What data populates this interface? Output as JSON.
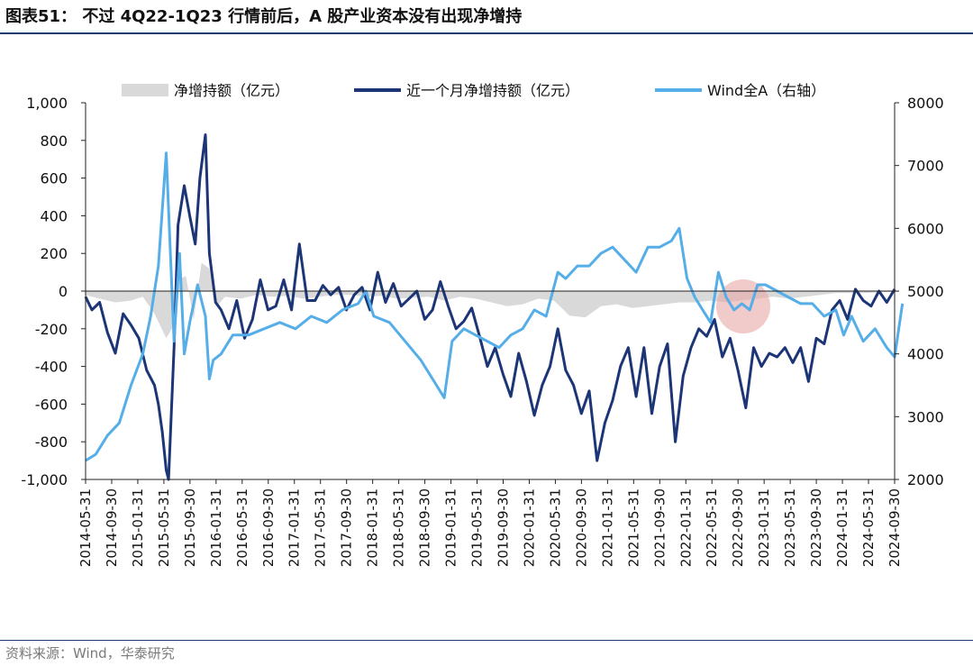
{
  "title": "图表51： 不过 4Q22-1Q23 行情前后，A 股产业资本没有出现净增持",
  "source": "资料来源：Wind，华泰研究",
  "chart_data": {
    "type": "line",
    "legend_position": "top",
    "grid": false,
    "x_ticks": [
      "2014-05-31",
      "2014-09-30",
      "2015-01-31",
      "2015-05-31",
      "2015-09-30",
      "2016-01-31",
      "2016-05-31",
      "2016-09-30",
      "2017-01-31",
      "2017-05-31",
      "2017-09-30",
      "2018-01-31",
      "2018-05-31",
      "2018-09-30",
      "2019-01-31",
      "2019-05-31",
      "2019-09-30",
      "2020-01-31",
      "2020-05-31",
      "2020-09-30",
      "2021-01-31",
      "2021-05-31",
      "2021-09-30",
      "2022-01-31",
      "2022-05-31",
      "2022-09-30",
      "2023-01-31",
      "2023-05-31",
      "2023-09-30",
      "2024-01-31",
      "2024-05-31",
      "2024-09-30"
    ],
    "left_axis": {
      "ylim": [
        -1000,
        1000
      ],
      "ticks": [
        "1,000",
        "800",
        "600",
        "400",
        "200",
        "0",
        "-200",
        "-400",
        "-600",
        "-800",
        "-1,000"
      ]
    },
    "right_axis": {
      "ylim": [
        2000,
        8000
      ],
      "ticks": [
        "8000",
        "7000",
        "6000",
        "5000",
        "4000",
        "3000",
        "2000"
      ]
    },
    "series": [
      {
        "name": "净增持额（亿元）",
        "kind": "area",
        "axis": "left",
        "color": "#d9d9d9",
        "x": [
          2014.42,
          2014.6,
          2014.8,
          2015.0,
          2015.15,
          2015.3,
          2015.45,
          2015.55,
          2015.6,
          2015.7,
          2015.8,
          2015.9,
          2016.0,
          2016.1,
          2016.2,
          2016.4,
          2016.6,
          2016.8,
          2017.0,
          2017.2,
          2017.4,
          2017.6,
          2017.8,
          2018.0,
          2018.2,
          2018.4,
          2018.6,
          2018.8,
          2019.0,
          2019.2,
          2019.4,
          2019.6,
          2019.8,
          2020.0,
          2020.2,
          2020.4,
          2020.6,
          2020.8,
          2021.0,
          2021.2,
          2021.4,
          2021.6,
          2021.8,
          2022.0,
          2022.2,
          2022.4,
          2022.6,
          2022.8,
          2023.0,
          2023.2,
          2023.4,
          2023.6,
          2023.8,
          2024.0,
          2024.2,
          2024.4,
          2024.6,
          2024.8
        ],
        "values": [
          -20,
          -40,
          -60,
          -50,
          -30,
          -120,
          -250,
          -180,
          60,
          80,
          -150,
          150,
          120,
          -80,
          -30,
          -40,
          -20,
          -30,
          -25,
          -40,
          -30,
          -20,
          -20,
          -30,
          -25,
          -40,
          -35,
          -30,
          -50,
          -30,
          -40,
          -60,
          -80,
          -70,
          -40,
          -50,
          -130,
          -140,
          -80,
          -70,
          -90,
          -80,
          -70,
          -60,
          -60,
          -50,
          -60,
          -50,
          -40,
          -30,
          -40,
          -30,
          -20,
          -10,
          -10,
          -10,
          -5,
          -5
        ]
      },
      {
        "name": "近一个月净增持额（亿元）",
        "kind": "line",
        "axis": "left",
        "color": "#1c3576",
        "x": [
          2014.42,
          2014.5,
          2014.6,
          2014.7,
          2014.8,
          2014.9,
          2015.0,
          2015.1,
          2015.2,
          2015.3,
          2015.35,
          2015.4,
          2015.45,
          2015.48,
          2015.55,
          2015.6,
          2015.68,
          2015.75,
          2015.82,
          2015.88,
          2015.95,
          2016.0,
          2016.08,
          2016.15,
          2016.25,
          2016.35,
          2016.45,
          2016.55,
          2016.65,
          2016.75,
          2016.85,
          2016.95,
          2017.05,
          2017.15,
          2017.25,
          2017.35,
          2017.45,
          2017.55,
          2017.65,
          2017.75,
          2017.85,
          2017.95,
          2018.05,
          2018.15,
          2018.25,
          2018.35,
          2018.45,
          2018.55,
          2018.65,
          2018.75,
          2018.85,
          2018.95,
          2019.05,
          2019.15,
          2019.25,
          2019.35,
          2019.45,
          2019.55,
          2019.65,
          2019.75,
          2019.85,
          2019.95,
          2020.05,
          2020.15,
          2020.25,
          2020.35,
          2020.45,
          2020.55,
          2020.65,
          2020.75,
          2020.85,
          2020.95,
          2021.05,
          2021.15,
          2021.25,
          2021.35,
          2021.45,
          2021.55,
          2021.65,
          2021.75,
          2021.85,
          2021.95,
          2022.05,
          2022.15,
          2022.25,
          2022.35,
          2022.45,
          2022.55,
          2022.65,
          2022.75,
          2022.85,
          2022.95,
          2023.05,
          2023.15,
          2023.25,
          2023.35,
          2023.45,
          2023.55,
          2023.65,
          2023.75,
          2023.85,
          2023.95,
          2024.05,
          2024.15,
          2024.25,
          2024.35,
          2024.45,
          2024.55,
          2024.65,
          2024.75
        ],
        "values": [
          -30,
          -100,
          -60,
          -220,
          -330,
          -120,
          -180,
          -250,
          -420,
          -500,
          -600,
          -750,
          -950,
          -1000,
          -300,
          350,
          560,
          400,
          250,
          600,
          830,
          200,
          -60,
          -100,
          -200,
          -50,
          -250,
          -150,
          60,
          -100,
          -80,
          60,
          -100,
          250,
          -50,
          -50,
          30,
          -20,
          20,
          -100,
          -20,
          20,
          -100,
          100,
          -60,
          40,
          -80,
          -40,
          0,
          -150,
          -100,
          50,
          -80,
          -200,
          -160,
          -90,
          -240,
          -400,
          -300,
          -440,
          -560,
          -330,
          -480,
          -660,
          -500,
          -400,
          -200,
          -420,
          -500,
          -650,
          -530,
          -900,
          -700,
          -580,
          -400,
          -300,
          -560,
          -300,
          -650,
          -400,
          -280,
          -800,
          -450,
          -300,
          -200,
          -240,
          -150,
          -350,
          -250,
          -420,
          -620,
          -300,
          -400,
          -330,
          -350,
          -300,
          -380,
          -300,
          -480,
          -250,
          -280,
          -100,
          -50,
          -150,
          10,
          -50,
          -80,
          0,
          -60,
          10
        ]
      },
      {
        "name": "Wind全A（右轴）",
        "kind": "line",
        "axis": "right",
        "color": "#55aee8",
        "x": [
          2014.42,
          2014.55,
          2014.7,
          2014.85,
          2015.0,
          2015.15,
          2015.25,
          2015.35,
          2015.45,
          2015.55,
          2015.62,
          2015.68,
          2015.75,
          2015.85,
          2015.95,
          2016.0,
          2016.05,
          2016.15,
          2016.3,
          2016.5,
          2016.7,
          2016.9,
          2017.1,
          2017.3,
          2017.5,
          2017.7,
          2017.9,
          2018.0,
          2018.1,
          2018.3,
          2018.5,
          2018.7,
          2018.9,
          2019.0,
          2019.1,
          2019.25,
          2019.4,
          2019.55,
          2019.7,
          2019.85,
          2020.0,
          2020.15,
          2020.3,
          2020.45,
          2020.55,
          2020.7,
          2020.85,
          2021.0,
          2021.15,
          2021.3,
          2021.45,
          2021.6,
          2021.75,
          2021.9,
          2022.0,
          2022.1,
          2022.2,
          2022.3,
          2022.4,
          2022.5,
          2022.6,
          2022.7,
          2022.8,
          2022.9,
          2023.0,
          2023.1,
          2023.25,
          2023.4,
          2023.55,
          2023.7,
          2023.85,
          2024.0,
          2024.1,
          2024.2,
          2024.35,
          2024.5,
          2024.65,
          2024.75,
          2024.85
        ],
        "values": [
          2300,
          2400,
          2700,
          2900,
          3500,
          4000,
          4600,
          5400,
          7200,
          4200,
          5600,
          4000,
          4500,
          5100,
          4600,
          3600,
          3900,
          4000,
          4300,
          4300,
          4400,
          4500,
          4400,
          4600,
          4500,
          4700,
          4800,
          5000,
          4600,
          4500,
          4200,
          3900,
          3500,
          3300,
          4200,
          4400,
          4300,
          4200,
          4100,
          4300,
          4400,
          4700,
          4600,
          5300,
          5200,
          5400,
          5400,
          5600,
          5700,
          5500,
          5300,
          5700,
          5700,
          5800,
          6000,
          5200,
          4900,
          4700,
          4500,
          5300,
          4900,
          4700,
          4800,
          4700,
          5100,
          5100,
          5000,
          4900,
          4800,
          4800,
          4600,
          4700,
          4300,
          4600,
          4200,
          4400,
          4100,
          3950,
          4800
        ]
      }
    ]
  }
}
